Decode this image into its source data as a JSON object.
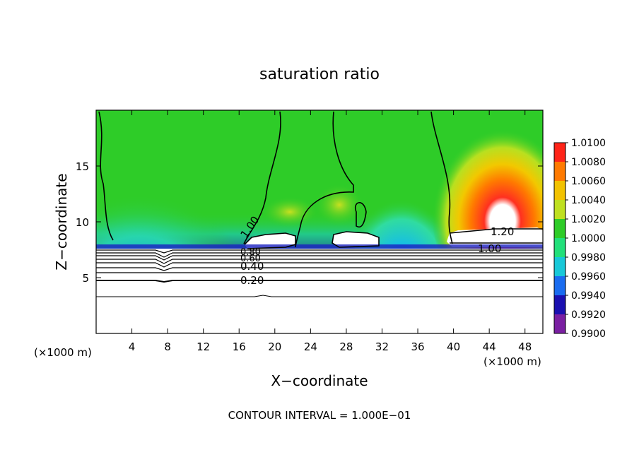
{
  "chart_data": {
    "type": "heatmap",
    "title": "saturation ratio",
    "xlabel": "X−coordinate",
    "ylabel": "Z−coordinate",
    "x_unit_left": "(×1000 m)",
    "x_unit_right": "(×1000 m)",
    "footer": "CONTOUR INTERVAL = 1.000E−01",
    "xlim": [
      0,
      50
    ],
    "ylim": [
      0,
      20
    ],
    "x_ticks": [
      4,
      8,
      12,
      16,
      20,
      24,
      28,
      32,
      36,
      40,
      44,
      48
    ],
    "y_ticks": [
      5,
      10,
      15
    ],
    "colorbar": {
      "levels": [
        "0.9900",
        "0.9920",
        "0.9940",
        "0.9960",
        "0.9980",
        "1.0000",
        "1.0020",
        "1.0040",
        "1.0060",
        "1.0080",
        "1.0100"
      ],
      "colors": [
        "#7a1fa2",
        "#1a10b0",
        "#1a6cf0",
        "#18c8d8",
        "#22e07a",
        "#2ecc28",
        "#bfe020",
        "#f2c200",
        "#ff7a00",
        "#ff2418",
        "#ff8a8a"
      ]
    },
    "contour_labels": [
      "1.00",
      "0.80",
      "0.60",
      "0.40",
      "0.20",
      "1.20",
      "1.00"
    ]
  }
}
